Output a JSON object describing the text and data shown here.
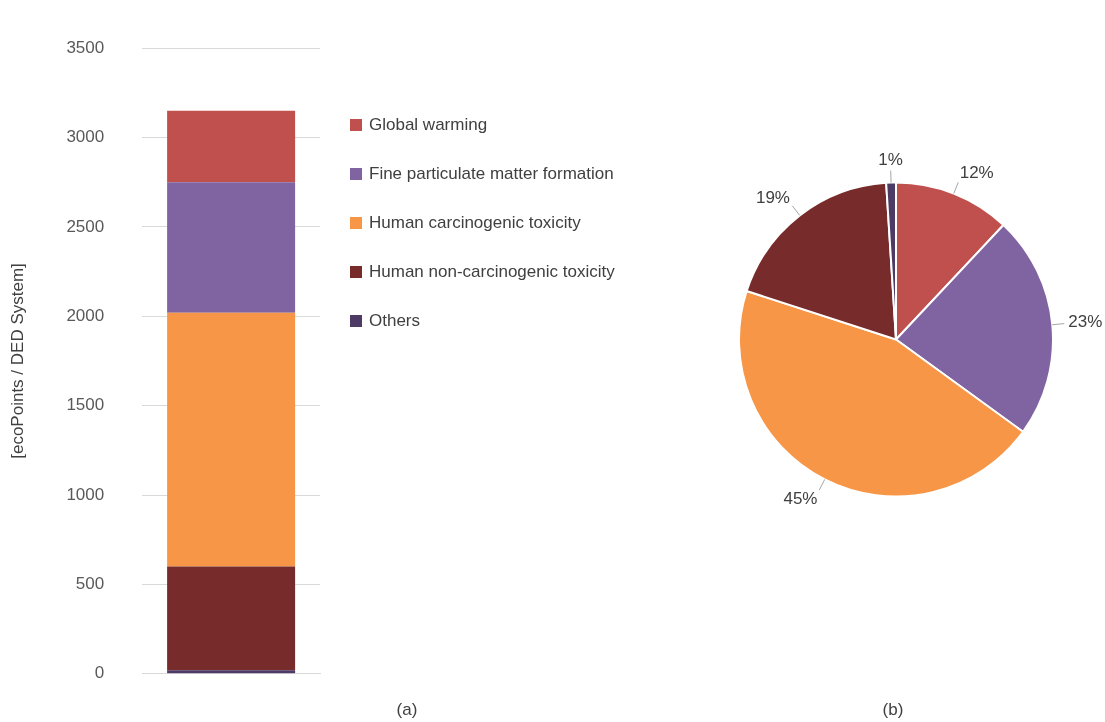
{
  "chart_data": [
    {
      "type": "bar",
      "stacked": true,
      "categories": [
        null
      ],
      "ylabel": "[ecoPoints / DED System]",
      "ylim": [
        0,
        3500
      ],
      "yticks": [
        0,
        500,
        1000,
        1500,
        2000,
        2500,
        3000,
        3500
      ],
      "grid": "y",
      "legend": "right",
      "tick_labels": "y",
      "annotations": [
        "(a)"
      ],
      "series": [
        {
          "name": "Others",
          "color": "#4d3b66",
          "values": [
            20
          ]
        },
        {
          "name": "Human non-carcinogenic toxicity",
          "color": "#782b2b",
          "values": [
            580
          ]
        },
        {
          "name": "Human carcinogenic toxicity",
          "color": "#f79646",
          "values": [
            1420
          ]
        },
        {
          "name": "Fine particulate matter formation",
          "color": "#8064a2",
          "values": [
            730
          ]
        },
        {
          "name": "Global warming",
          "color": "#c0504d",
          "values": [
            400
          ]
        }
      ]
    },
    {
      "type": "pie",
      "categories": [
        null,
        null,
        null,
        null,
        null
      ],
      "values": [
        12,
        23,
        45,
        19,
        1
      ],
      "colors": [
        "#c0504d",
        "#8064a2",
        "#f79646",
        "#782b2b",
        "#4d3b66"
      ],
      "value_labels": [
        "12%",
        "23%",
        "45%",
        "19%",
        "1%"
      ],
      "annotations": [
        "(b)"
      ]
    }
  ]
}
